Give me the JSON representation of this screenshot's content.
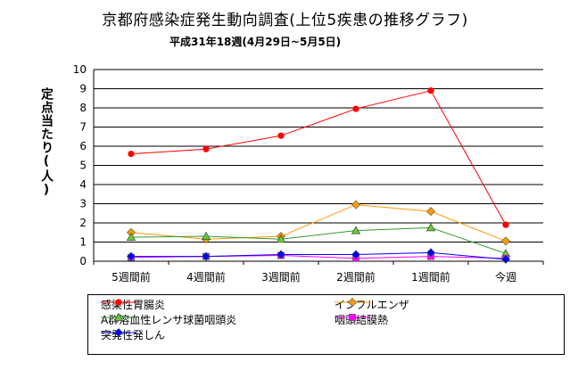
{
  "chart_data": {
    "type": "line",
    "title": "京都府感染症発生動向調査(上位5疾患の推移グラフ)",
    "subtitle": "平成31年18週(4月29日~5月5日)",
    "ylabel": "定点当たり(人)",
    "xlabel": "",
    "ylim": [
      0,
      10
    ],
    "yticks": [
      "0",
      "1",
      "2",
      "3",
      "4",
      "5",
      "6",
      "7",
      "8",
      "9",
      "10"
    ],
    "categories": [
      "5週間前",
      "4週間前",
      "3週間前",
      "2週間前",
      "1週間前",
      "今週"
    ],
    "grid": "horizontal",
    "legend_position": "bottom",
    "series": [
      {
        "name": "感染性胃腸炎",
        "color": "#ff0000",
        "marker": "circle",
        "values": [
          5.6,
          5.85,
          6.55,
          7.95,
          8.9,
          1.9
        ]
      },
      {
        "name": "インフルエンザ",
        "color": "#ff9900",
        "marker": "diamond",
        "values": [
          1.5,
          1.15,
          1.3,
          2.95,
          2.6,
          1.05
        ]
      },
      {
        "name": "A群溶血性レンサ球菌咽頭炎",
        "color": "#339933",
        "marker": "triangle",
        "values": [
          1.25,
          1.3,
          1.15,
          1.6,
          1.75,
          0.4
        ]
      },
      {
        "name": "咽頭結膜熱",
        "color": "#ff00ff",
        "marker": "square",
        "values": [
          0.2,
          0.25,
          0.3,
          0.15,
          0.25,
          0.15
        ]
      },
      {
        "name": "突発性発しん",
        "color": "#0000ff",
        "marker": "diamond",
        "values": [
          0.25,
          0.25,
          0.35,
          0.35,
          0.45,
          0.1
        ]
      }
    ]
  }
}
